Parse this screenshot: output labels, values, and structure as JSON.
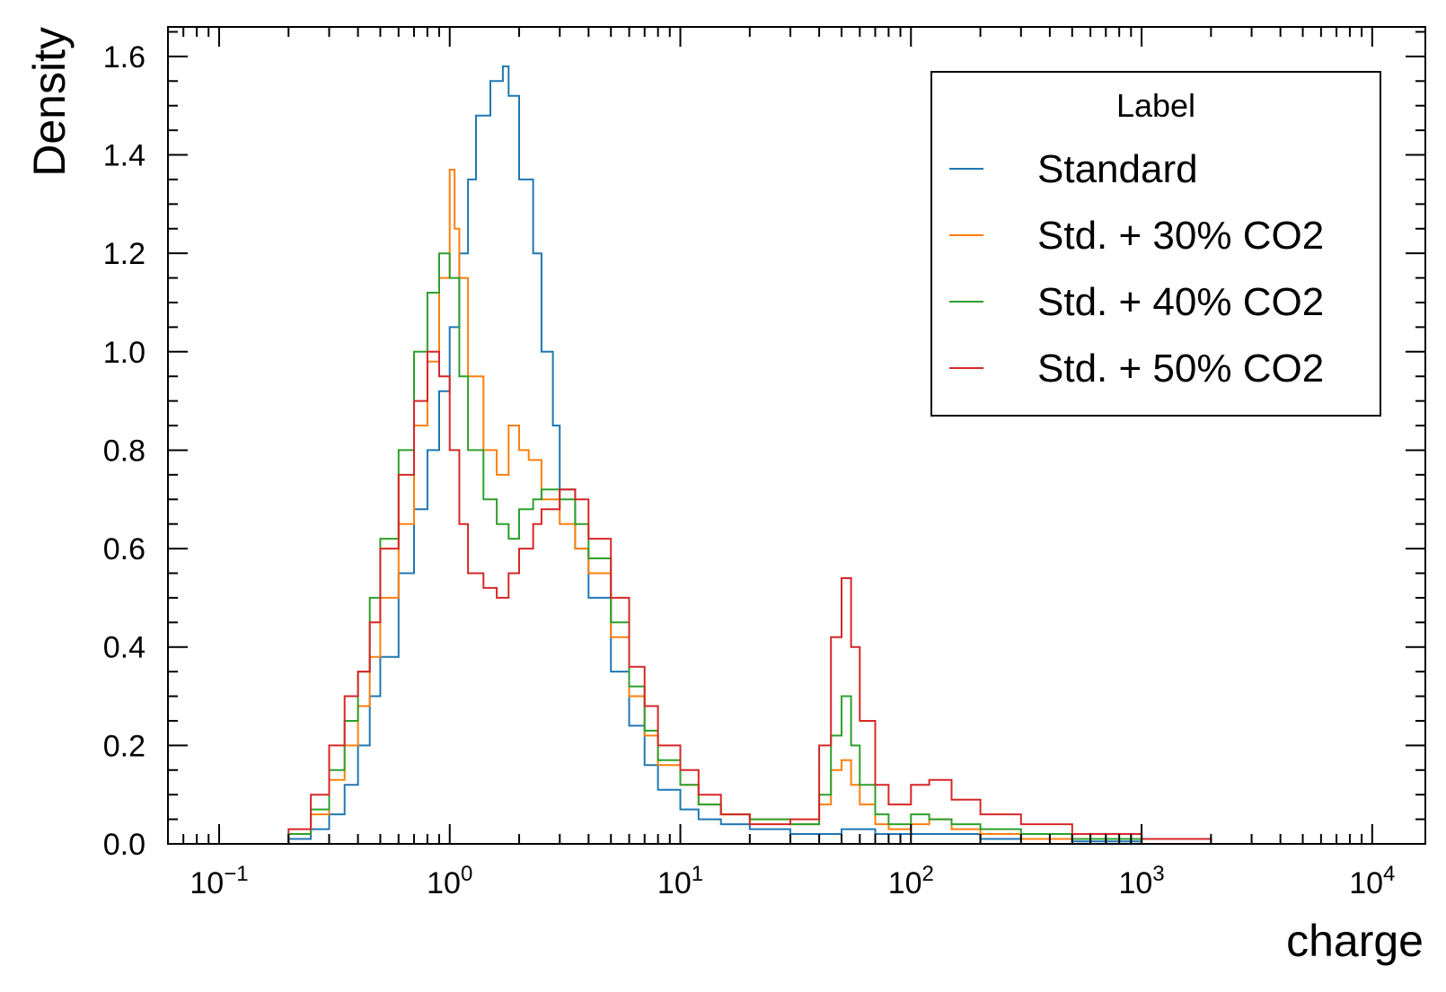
{
  "chart_data": {
    "type": "line",
    "xlabel": "charge",
    "ylabel": "Density",
    "xscale": "log",
    "xlim": [
      0.06,
      17000
    ],
    "ylim": [
      0,
      1.66
    ],
    "x_ticks": [
      {
        "mant": "10",
        "exp": "−1",
        "value": 0.1
      },
      {
        "mant": "10",
        "exp": "0",
        "value": 1
      },
      {
        "mant": "10",
        "exp": "1",
        "value": 10
      },
      {
        "mant": "10",
        "exp": "2",
        "value": 100
      },
      {
        "mant": "10",
        "exp": "3",
        "value": 1000
      },
      {
        "mant": "10",
        "exp": "4",
        "value": 10000
      }
    ],
    "y_ticks": [
      "0.0",
      "0.2",
      "0.4",
      "0.6",
      "0.8",
      "1.0",
      "1.2",
      "1.4",
      "1.6"
    ],
    "y_tick_values": [
      0,
      0.2,
      0.4,
      0.6,
      0.8,
      1.0,
      1.2,
      1.4,
      1.6
    ],
    "legend": {
      "title": "Label",
      "position": "top-right"
    },
    "series": [
      {
        "name": "Standard",
        "color": "#1f77b4",
        "x": [
          0.15,
          0.2,
          0.25,
          0.3,
          0.35,
          0.4,
          0.45,
          0.5,
          0.6,
          0.7,
          0.8,
          0.9,
          1.0,
          1.1,
          1.2,
          1.3,
          1.5,
          1.7,
          1.8,
          2.0,
          2.3,
          2.5,
          2.8,
          3.0,
          3.5,
          4,
          5,
          6,
          7,
          8,
          10,
          12,
          15,
          20,
          30,
          40,
          50,
          60,
          70,
          80,
          100,
          150,
          200,
          300,
          500,
          1000
        ],
        "y": [
          0.0,
          0.01,
          0.03,
          0.06,
          0.12,
          0.2,
          0.3,
          0.38,
          0.55,
          0.68,
          0.8,
          0.92,
          1.05,
          1.2,
          1.35,
          1.48,
          1.55,
          1.58,
          1.52,
          1.35,
          1.2,
          1.0,
          0.85,
          0.72,
          0.6,
          0.5,
          0.35,
          0.24,
          0.16,
          0.11,
          0.07,
          0.05,
          0.04,
          0.03,
          0.02,
          0.02,
          0.03,
          0.03,
          0.02,
          0.02,
          0.02,
          0.02,
          0.01,
          0.01,
          0.005,
          0.0
        ]
      },
      {
        "name": "Std. + 30% CO2",
        "color": "#ff7f0e",
        "x": [
          0.15,
          0.2,
          0.25,
          0.3,
          0.35,
          0.4,
          0.45,
          0.5,
          0.6,
          0.7,
          0.8,
          0.9,
          1.0,
          1.05,
          1.1,
          1.2,
          1.4,
          1.6,
          1.8,
          2.0,
          2.2,
          2.5,
          3.0,
          3.5,
          4,
          5,
          6,
          7,
          8,
          10,
          12,
          15,
          20,
          30,
          40,
          45,
          50,
          55,
          60,
          70,
          80,
          100,
          120,
          150,
          200,
          300,
          500,
          1000
        ],
        "y": [
          0.0,
          0.02,
          0.06,
          0.13,
          0.2,
          0.28,
          0.38,
          0.5,
          0.65,
          0.85,
          0.98,
          1.15,
          1.37,
          1.25,
          1.15,
          0.95,
          0.8,
          0.75,
          0.85,
          0.8,
          0.78,
          0.7,
          0.65,
          0.6,
          0.55,
          0.42,
          0.3,
          0.22,
          0.16,
          0.12,
          0.08,
          0.06,
          0.05,
          0.04,
          0.08,
          0.15,
          0.17,
          0.12,
          0.08,
          0.04,
          0.03,
          0.04,
          0.05,
          0.03,
          0.02,
          0.01,
          0.01,
          0.0
        ]
      },
      {
        "name": "Std. + 40% CO2",
        "color": "#2ca02c",
        "x": [
          0.15,
          0.2,
          0.25,
          0.3,
          0.35,
          0.4,
          0.45,
          0.5,
          0.6,
          0.7,
          0.8,
          0.9,
          1.0,
          1.1,
          1.2,
          1.4,
          1.6,
          1.8,
          2.0,
          2.3,
          2.5,
          3.0,
          3.5,
          4,
          5,
          6,
          7,
          8,
          10,
          12,
          15,
          20,
          30,
          40,
          45,
          50,
          55,
          60,
          70,
          80,
          100,
          120,
          150,
          200,
          300,
          500,
          1000
        ],
        "y": [
          0.0,
          0.02,
          0.07,
          0.15,
          0.25,
          0.35,
          0.5,
          0.62,
          0.8,
          1.0,
          1.12,
          1.2,
          1.15,
          0.95,
          0.8,
          0.7,
          0.65,
          0.62,
          0.68,
          0.7,
          0.72,
          0.7,
          0.65,
          0.58,
          0.45,
          0.32,
          0.23,
          0.17,
          0.12,
          0.08,
          0.06,
          0.05,
          0.04,
          0.1,
          0.22,
          0.3,
          0.2,
          0.12,
          0.06,
          0.04,
          0.06,
          0.05,
          0.04,
          0.03,
          0.02,
          0.01,
          0.0
        ]
      },
      {
        "name": "Std. + 50% CO2",
        "color": "#d62728",
        "x": [
          0.15,
          0.2,
          0.25,
          0.3,
          0.35,
          0.4,
          0.45,
          0.5,
          0.6,
          0.7,
          0.8,
          0.9,
          1.0,
          1.1,
          1.2,
          1.4,
          1.6,
          1.8,
          2.0,
          2.3,
          2.5,
          3.0,
          3.5,
          4,
          5,
          6,
          7,
          8,
          10,
          12,
          15,
          20,
          30,
          40,
          45,
          50,
          55,
          60,
          70,
          80,
          100,
          120,
          150,
          200,
          300,
          500,
          1000,
          2000
        ],
        "y": [
          0.0,
          0.03,
          0.1,
          0.2,
          0.3,
          0.35,
          0.45,
          0.6,
          0.75,
          0.9,
          1.0,
          0.95,
          0.8,
          0.65,
          0.55,
          0.52,
          0.5,
          0.55,
          0.6,
          0.65,
          0.68,
          0.72,
          0.7,
          0.62,
          0.5,
          0.36,
          0.28,
          0.2,
          0.15,
          0.1,
          0.06,
          0.04,
          0.05,
          0.2,
          0.42,
          0.54,
          0.4,
          0.25,
          0.12,
          0.08,
          0.12,
          0.13,
          0.09,
          0.06,
          0.04,
          0.02,
          0.01,
          0.0
        ]
      }
    ]
  }
}
